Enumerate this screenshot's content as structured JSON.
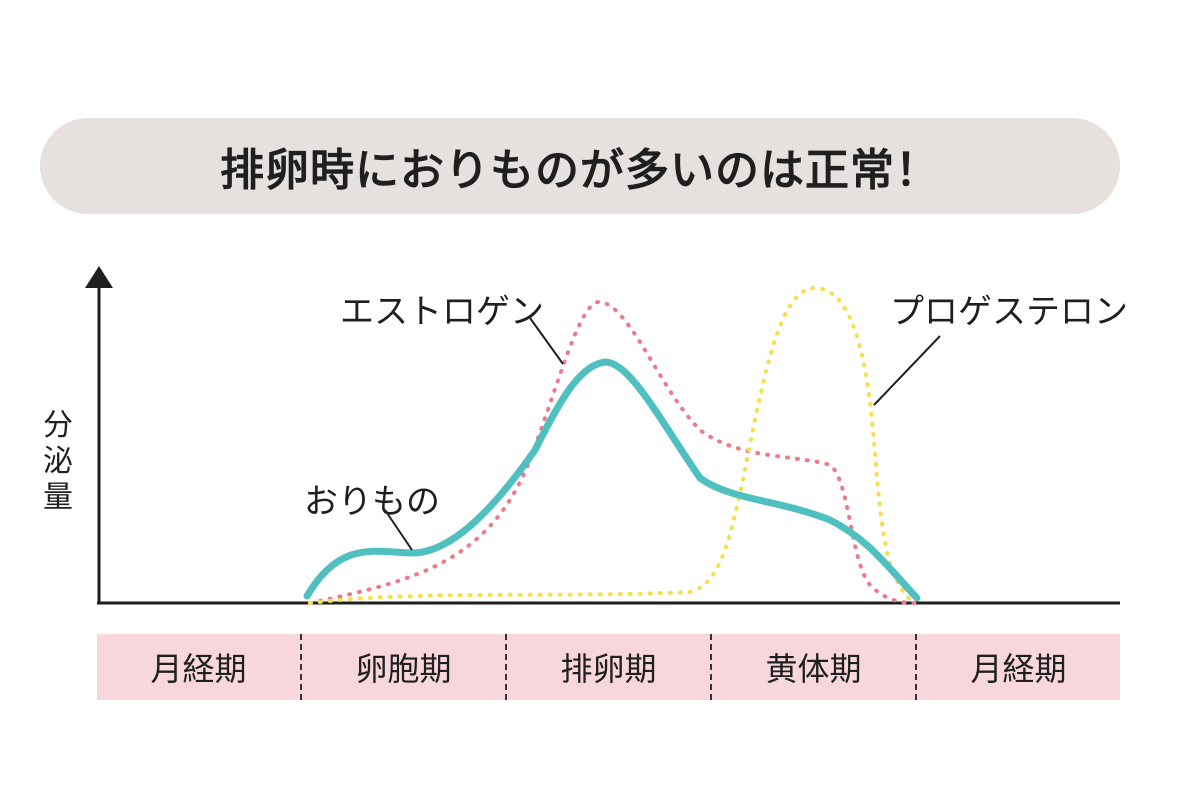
{
  "title": "排卵時におりものが多いのは正常！",
  "y_axis_label": "分泌量",
  "series_labels": {
    "estrogen": "エストロゲン",
    "progesterone": "プロゲステロン",
    "discharge": "おりもの"
  },
  "phases": [
    "月経期",
    "卵胞期",
    "排卵期",
    "黄体期",
    "月経期"
  ],
  "colors": {
    "banner": "#e6e1de",
    "phase_band": "#f8d7dc",
    "discharge": "#4fbfbf",
    "estrogen": "#ec7b8c",
    "progesterone": "#f5df4d"
  }
}
